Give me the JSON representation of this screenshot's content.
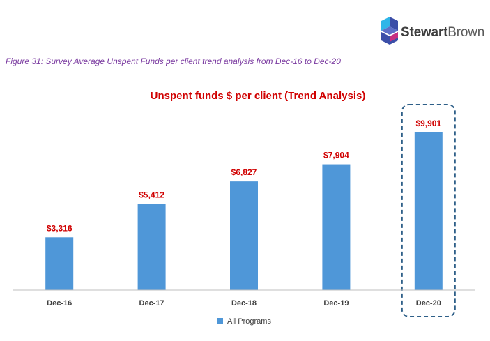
{
  "brand": {
    "name_bold": "Stewart",
    "name_light": "Brown",
    "logo_icon": "stewartbrown-logo-icon",
    "colors": {
      "icon_dark": "#3b4ea8",
      "icon_mid": "#5e6fc8",
      "icon_light": "#2fb5e8",
      "icon_accent": "#e02a7a"
    }
  },
  "figure_caption": "Figure 31: Survey Average Unspent Funds per client trend analysis from Dec-16 to Dec-20",
  "colors": {
    "caption": "#7a3aa0",
    "title": "#d00000",
    "bar": "#4f97d8",
    "data_label": "#d00000",
    "axis_label": "#404040",
    "highlight_border": "#2e5f88"
  },
  "chart_data": {
    "type": "bar",
    "title": "Unspent funds $ per client (Trend Analysis)",
    "categories": [
      "Dec-16",
      "Dec-17",
      "Dec-18",
      "Dec-19",
      "Dec-20"
    ],
    "series": [
      {
        "name": "All Programs",
        "values": [
          3316,
          5412,
          6827,
          7904,
          9901
        ],
        "labels": [
          "$3,316",
          "$5,412",
          "$6,827",
          "$7,904",
          "$9,901"
        ]
      }
    ],
    "ylim": [
      0,
      10600
    ],
    "xlabel": "",
    "ylabel": "",
    "grid": false,
    "legend_position": "bottom",
    "highlight_category": "Dec-20"
  }
}
